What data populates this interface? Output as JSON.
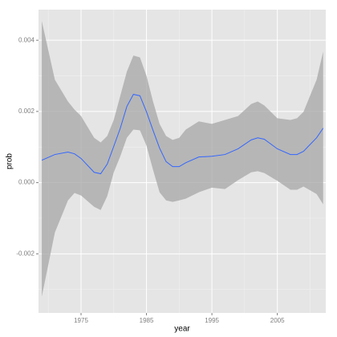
{
  "chart_data": {
    "type": "line",
    "x_label": "year",
    "y_label": "prob",
    "x": [
      1969,
      1971,
      1973,
      1974,
      1975,
      1977,
      1978,
      1979,
      1980,
      1981,
      1982,
      1983,
      1984,
      1985,
      1986,
      1987,
      1988,
      1989,
      1990,
      1991,
      1993,
      1995,
      1997,
      1999,
      2001,
      2002,
      2003,
      2005,
      2007,
      2008,
      2009,
      2011,
      2012
    ],
    "values": [
      0.00063,
      0.00079,
      0.00086,
      0.00081,
      0.00068,
      0.00029,
      0.00025,
      0.00052,
      0.00102,
      0.00153,
      0.00214,
      0.00248,
      0.00244,
      0.00199,
      0.00147,
      0.00097,
      0.00059,
      0.00045,
      0.00045,
      0.00056,
      0.00072,
      0.00074,
      0.00079,
      0.00095,
      0.0012,
      0.00126,
      0.00122,
      0.00095,
      0.00079,
      0.00079,
      0.00088,
      0.00126,
      0.00153
    ],
    "upper": [
      0.00454,
      0.00289,
      0.00228,
      0.00205,
      0.00187,
      0.00126,
      0.00113,
      0.00131,
      0.00176,
      0.00244,
      0.00312,
      0.00357,
      0.00352,
      0.003,
      0.00228,
      0.00165,
      0.00131,
      0.0012,
      0.00126,
      0.00149,
      0.00172,
      0.00165,
      0.00176,
      0.00187,
      0.00221,
      0.00228,
      0.00217,
      0.00181,
      0.00176,
      0.00181,
      0.00199,
      0.00289,
      0.00368
    ],
    "lower": [
      -0.0032,
      -0.0014,
      -0.0005,
      -0.00029,
      -0.00036,
      -0.00068,
      -0.00077,
      -0.00038,
      0.00029,
      0.00074,
      0.00126,
      0.00149,
      0.00147,
      0.00104,
      0.00036,
      -0.00027,
      -0.0005,
      -0.00054,
      -0.0005,
      -0.00045,
      -0.00027,
      -0.00014,
      -0.00018,
      7e-05,
      0.00029,
      0.00032,
      0.00027,
      5e-05,
      -0.0002,
      -0.0002,
      -0.00011,
      -0.00032,
      -0.00061
    ],
    "color": "#3366ff",
    "band_color": "#a6a6a6",
    "xlim": [
      1968.5,
      2012.4
    ],
    "ylim": [
      -0.00366,
      0.00486
    ],
    "xticks": [
      1975,
      1985,
      1995,
      2005
    ],
    "yticks": [
      -0.002,
      {
        "value": 0,
        "label": "0.000"
      },
      0.002,
      0.004
    ],
    "minor_xticks": [
      1970,
      1980,
      1990,
      2000,
      2010
    ],
    "minor_yticks": [
      -0.003,
      -0.001,
      0.001,
      0.003
    ],
    "grid": true
  }
}
